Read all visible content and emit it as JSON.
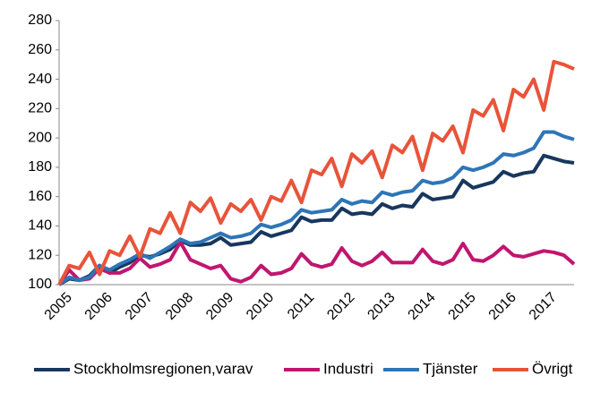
{
  "chart_data": {
    "type": "line",
    "categories": [
      "2005",
      null,
      null,
      null,
      "2006",
      null,
      null,
      null,
      "2007",
      null,
      null,
      null,
      "2008",
      null,
      null,
      null,
      "2009",
      null,
      null,
      null,
      "2010",
      null,
      null,
      null,
      "2011",
      null,
      null,
      null,
      "2012",
      null,
      null,
      null,
      "2013",
      null,
      null,
      null,
      "2014",
      null,
      null,
      null,
      "2015",
      null,
      null,
      null,
      "2016",
      null,
      null,
      null,
      "2017",
      null,
      null,
      null
    ],
    "series": [
      {
        "name": "Stockholmsregionen,varav",
        "color": "#17375e",
        "values": [
          100,
          104,
          103,
          106,
          113,
          108,
          112,
          115,
          120,
          119,
          121,
          124,
          130,
          127,
          127,
          128,
          132,
          127,
          128,
          129,
          136,
          133,
          135,
          137,
          146,
          143,
          144,
          144,
          152,
          148,
          149,
          148,
          155,
          152,
          154,
          153,
          162,
          158,
          159,
          160,
          171,
          166,
          168,
          170,
          177,
          174,
          176,
          177,
          188,
          186,
          184,
          183
        ]
      },
      {
        "name": "Industri",
        "color": "#c0166f",
        "values": [
          100,
          110,
          103,
          104,
          111,
          108,
          108,
          111,
          118,
          112,
          114,
          117,
          129,
          117,
          114,
          111,
          113,
          104,
          102,
          105,
          113,
          107,
          108,
          111,
          121,
          114,
          112,
          114,
          125,
          116,
          113,
          116,
          122,
          115,
          115,
          115,
          124,
          116,
          114,
          117,
          128,
          117,
          116,
          120,
          126,
          120,
          119,
          121,
          123,
          122,
          120,
          114
        ]
      },
      {
        "name": "Tjänster",
        "color": "#2e75b6",
        "values": [
          100,
          105,
          103,
          105,
          113,
          110,
          114,
          117,
          121,
          118,
          122,
          126,
          131,
          128,
          129,
          132,
          135,
          132,
          133,
          135,
          141,
          139,
          141,
          144,
          151,
          149,
          150,
          151,
          158,
          155,
          157,
          156,
          163,
          161,
          163,
          164,
          171,
          169,
          170,
          173,
          180,
          178,
          180,
          183,
          189,
          188,
          190,
          193,
          204,
          204,
          201,
          199
        ]
      },
      {
        "name": "Övrigt",
        "color": "#e8543a",
        "values": [
          100,
          113,
          111,
          122,
          107,
          123,
          120,
          133,
          119,
          138,
          135,
          149,
          135,
          156,
          150,
          159,
          142,
          155,
          150,
          158,
          144,
          160,
          157,
          171,
          156,
          178,
          175,
          186,
          167,
          189,
          183,
          191,
          173,
          195,
          190,
          201,
          178,
          203,
          198,
          208,
          190,
          219,
          215,
          226,
          205,
          233,
          228,
          240,
          219,
          252,
          250,
          247
        ]
      }
    ],
    "ylim": [
      100,
      280
    ],
    "yticks": [
      100,
      120,
      140,
      160,
      180,
      200,
      220,
      240,
      260,
      280
    ],
    "grid": false,
    "legend": "bottom"
  }
}
